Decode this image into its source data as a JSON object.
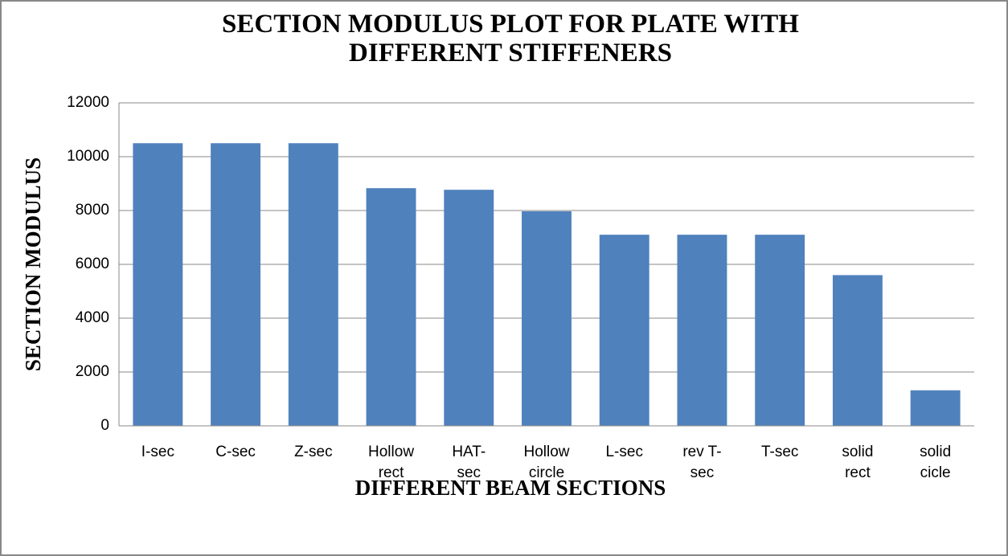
{
  "chart_data": {
    "type": "bar",
    "title": "SECTION MODULUS PLOT FOR PLATE WITH DIFFERENT STIFFENERS",
    "x_label": "DIFFERENT BEAM SECTIONS",
    "y_label": "SECTION MODULUS",
    "categories": [
      "I-sec",
      "C-sec",
      "Z-sec",
      "Hollow rect",
      "HAT-sec",
      "Hollow circle",
      "L-sec",
      "rev T-sec",
      "T-sec",
      "solid rect",
      "solid cicle"
    ],
    "values": [
      10500,
      10500,
      10500,
      8830,
      8770,
      7970,
      7100,
      7100,
      7100,
      5600,
      1320
    ],
    "color": "#4f81bd",
    "ylim": [
      0,
      12000
    ],
    "yticks": [
      0,
      2000,
      4000,
      6000,
      8000,
      10000,
      12000
    ],
    "grid": true
  }
}
